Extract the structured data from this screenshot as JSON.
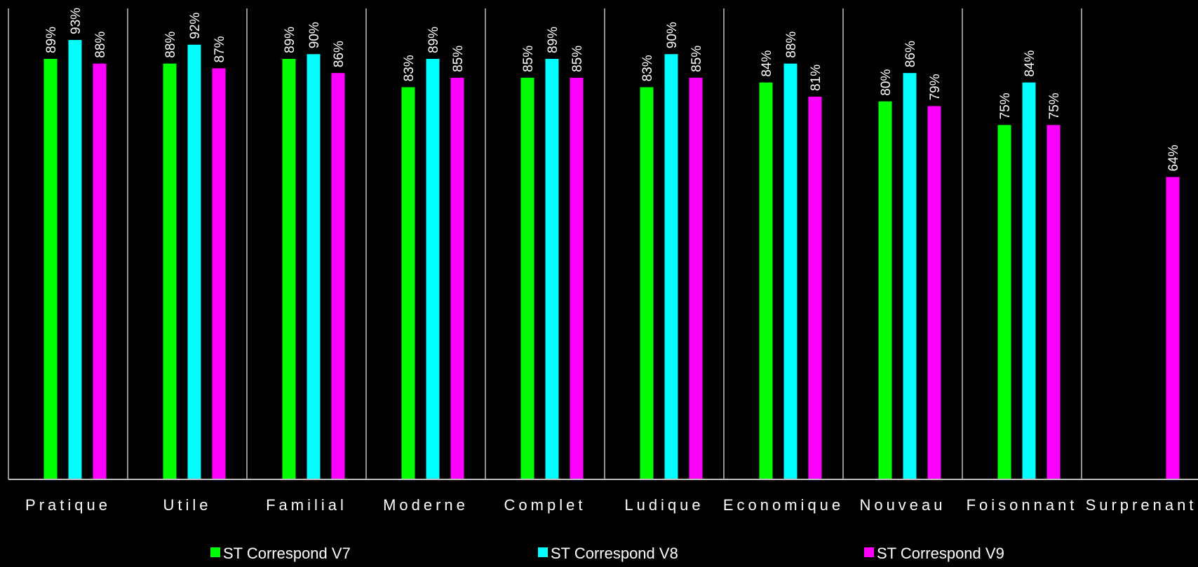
{
  "chart_data": {
    "type": "bar",
    "categories": [
      "Pratique",
      "Utile",
      "Familial",
      "Moderne",
      "Complet",
      "Ludique",
      "Economique",
      "Nouveau",
      "Foisonnant",
      "Surprenant"
    ],
    "series": [
      {
        "name": "ST Correspond V7",
        "color": "#00ff00",
        "values": [
          89,
          88,
          89,
          83,
          85,
          83,
          84,
          80,
          75,
          null
        ]
      },
      {
        "name": "ST Correspond V8",
        "color": "#00ffff",
        "values": [
          93,
          92,
          90,
          89,
          89,
          90,
          88,
          86,
          84,
          null
        ]
      },
      {
        "name": "ST Correspond V9",
        "color": "#ff00ff",
        "values": [
          88,
          87,
          86,
          85,
          85,
          85,
          81,
          79,
          75,
          64
        ]
      }
    ],
    "value_suffix": "%",
    "ylim": [
      0,
      100
    ],
    "grid": "vertical category separators",
    "legend_position": "bottom"
  }
}
